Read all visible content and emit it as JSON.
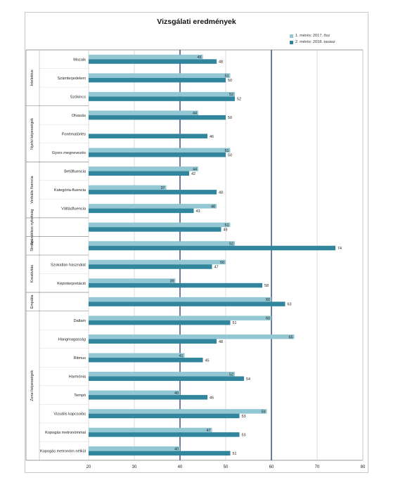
{
  "chart_data": {
    "type": "bar",
    "orientation": "horizontal",
    "title": "Vizsgálati eredmények",
    "xlim": [
      20,
      80
    ],
    "xticks": [
      20,
      30,
      40,
      50,
      60,
      70,
      80
    ],
    "reference_lines": [
      40,
      60
    ],
    "legend_position": "top-right",
    "series": [
      {
        "name": "1. mérés: 2017. ősz",
        "color": "#92c7d3"
      },
      {
        "name": "2. mérés: 2018. tavasz",
        "color": "#31859c"
      }
    ],
    "groups": [
      {
        "label": "Intelektus",
        "categories": [
          {
            "label": "Mozaik",
            "values": [
              45,
              48
            ]
          },
          {
            "label": "Számterjedelem",
            "values": [
              51,
              50
            ]
          },
          {
            "label": "Szókincs",
            "values": [
              52,
              52
            ]
          }
        ]
      },
      {
        "label": "Nyelvi képességek",
        "categories": [
          {
            "label": "Olvasás",
            "values": [
              44,
              50
            ]
          },
          {
            "label": "Fonématörlés",
            "values": [
              null,
              46
            ]
          },
          {
            "label": "Gyors megnevezés",
            "values": [
              51,
              50
            ]
          }
        ]
      },
      {
        "label": "Verbális fluencia",
        "categories": [
          {
            "label": "Betűfluencia",
            "values": [
              44,
              42
            ]
          },
          {
            "label": "Kategória-fluencia",
            "values": [
              37,
              48
            ]
          },
          {
            "label": "Váltásfluencia",
            "values": [
              48,
              43
            ]
          }
        ]
      },
      {
        "label": "Szándékos nyitottság",
        "categories": [
          {
            "label": "",
            "values": [
              51,
              49
            ]
          }
        ]
      },
      {
        "label": "Stroop",
        "categories": [
          {
            "label": "",
            "values": [
              52,
              74
            ]
          }
        ]
      },
      {
        "label": "Kreativitás",
        "categories": [
          {
            "label": "Szokatlan használat",
            "values": [
              50,
              47
            ]
          },
          {
            "label": "Képinterpretáció",
            "values": [
              39,
              58
            ]
          }
        ]
      },
      {
        "label": "Empátia",
        "categories": [
          {
            "label": "",
            "values": [
              60,
              63
            ]
          }
        ]
      },
      {
        "label": "Zenei képességek",
        "categories": [
          {
            "label": "Dallam",
            "values": [
              60,
              51
            ]
          },
          {
            "label": "Hangmagasság",
            "values": [
              65,
              48
            ]
          },
          {
            "label": "Ritmus",
            "values": [
              41,
              45
            ]
          },
          {
            "label": "Harmónia",
            "values": [
              52,
              54
            ]
          },
          {
            "label": "Tempó",
            "values": [
              40,
              46
            ]
          },
          {
            "label": "Vizuális kapcsolás",
            "values": [
              59,
              53
            ]
          },
          {
            "label": "Kopogás metronómmal",
            "values": [
              47,
              53
            ]
          },
          {
            "label": "Kopogás metronóm nélkül",
            "values": [
              40,
              51
            ]
          }
        ]
      }
    ]
  }
}
